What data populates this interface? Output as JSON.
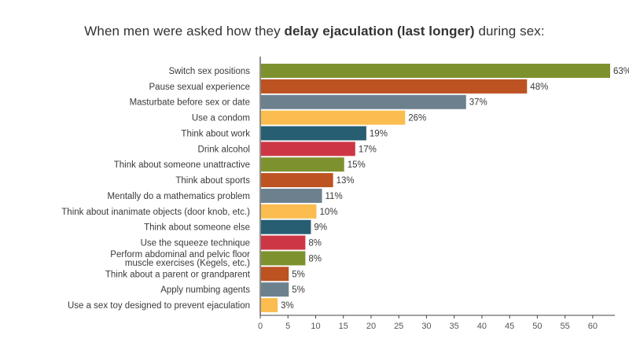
{
  "title": {
    "pre": "When men were asked how they ",
    "bold": "delay ejaculation (last longer)",
    "post": " during sex:"
  },
  "chart_data": {
    "type": "bar",
    "orientation": "horizontal",
    "title": "When men were asked how they delay ejaculation (last longer) during sex:",
    "categories": [
      [
        "Switch sex positions"
      ],
      [
        "Pause sexual experience"
      ],
      [
        "Masturbate before sex or date"
      ],
      [
        "Use a condom"
      ],
      [
        "Think about work"
      ],
      [
        "Drink alcohol"
      ],
      [
        "Think about someone unattractive"
      ],
      [
        "Think about sports"
      ],
      [
        "Mentally do a mathematics problem"
      ],
      [
        "Think about inanimate objects (door knob, etc.)"
      ],
      [
        "Think about someone else"
      ],
      [
        "Use the squeeze technique"
      ],
      [
        "Perform abdominal and pelvic floor",
        "muscle exercises (Kegels, etc.)"
      ],
      [
        "Think about a parent or grandparent"
      ],
      [
        "Apply numbing agents"
      ],
      [
        "Use a sex toy designed to prevent ejaculation"
      ]
    ],
    "values": [
      63,
      48,
      37,
      26,
      19,
      17,
      15,
      13,
      11,
      10,
      9,
      8,
      8,
      5,
      5,
      3
    ],
    "value_labels": [
      "63%",
      "48%",
      "37%",
      "26%",
      "19%",
      "17%",
      "15%",
      "13%",
      "11%",
      "10%",
      "9%",
      "8%",
      "8%",
      "5%",
      "5%",
      "3%"
    ],
    "colors": [
      "#7d922e",
      "#bd5222",
      "#6d808e",
      "#fbbd4f",
      "#275e72",
      "#cd3745"
    ],
    "xlim": [
      0,
      64
    ],
    "xticks": [
      0,
      5,
      10,
      15,
      20,
      25,
      30,
      35,
      40,
      45,
      50,
      55,
      60
    ],
    "grid": false,
    "legend": "none"
  }
}
